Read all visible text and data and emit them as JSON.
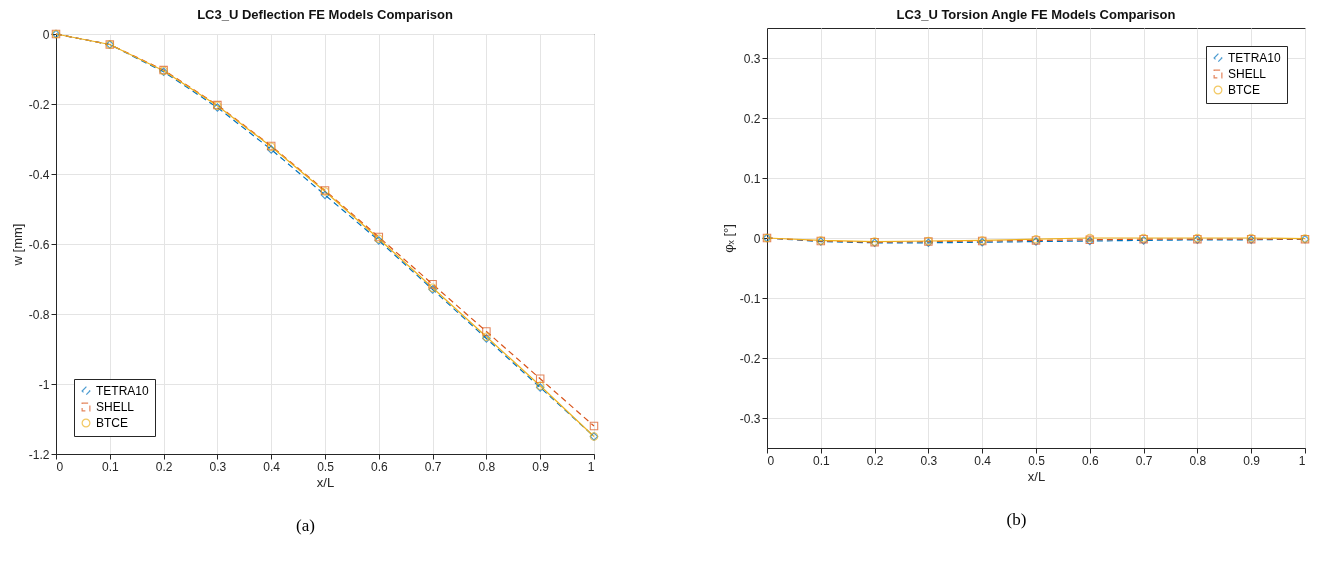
{
  "chart_data": [
    {
      "type": "line",
      "title": "LC3_U Deflection FE Models Comparison",
      "xlabel": "x/L",
      "ylabel": "w [mm]",
      "x": [
        0,
        0.1,
        0.2,
        0.3,
        0.4,
        0.5,
        0.6,
        0.7,
        0.8,
        0.9,
        1
      ],
      "xlim": [
        0,
        1
      ],
      "xticks": [
        0,
        0.1,
        0.2,
        0.3,
        0.4,
        0.5,
        0.6,
        0.7,
        0.8,
        0.9,
        1
      ],
      "ylim": [
        -1.2,
        0
      ],
      "yticks": [
        -1.2,
        -1,
        -0.8,
        -0.6,
        -0.4,
        -0.2,
        0
      ],
      "grid": true,
      "legend": "bottom left",
      "annotations": [
        "(a)"
      ],
      "series": [
        {
          "name": "TETRA10",
          "color": "#0072bd",
          "marker": "diamond",
          "line_style": "dashed",
          "values": [
            0,
            -0.03,
            -0.108,
            -0.21,
            -0.33,
            -0.46,
            -0.59,
            -0.73,
            -0.87,
            -1.01,
            -1.15
          ]
        },
        {
          "name": "SHELL",
          "color": "#d95319",
          "marker": "square",
          "line_style": "dashed",
          "values": [
            0,
            -0.03,
            -0.103,
            -0.203,
            -0.32,
            -0.447,
            -0.58,
            -0.715,
            -0.85,
            -0.985,
            -1.12
          ]
        },
        {
          "name": "BTCE",
          "color": "#edb120",
          "marker": "circle",
          "line_style": "solid",
          "values": [
            0,
            -0.03,
            -0.105,
            -0.205,
            -0.322,
            -0.45,
            -0.585,
            -0.725,
            -0.865,
            -1.005,
            -1.15
          ]
        }
      ]
    },
    {
      "type": "line",
      "title": "LC3_U Torsion Angle FE Models Comparison",
      "xlabel": "x/L",
      "ylabel": "φₓ [°]",
      "x": [
        0,
        0.1,
        0.2,
        0.3,
        0.4,
        0.5,
        0.6,
        0.7,
        0.8,
        0.9,
        1
      ],
      "xlim": [
        0,
        1
      ],
      "xticks": [
        0,
        0.1,
        0.2,
        0.3,
        0.4,
        0.5,
        0.6,
        0.7,
        0.8,
        0.9,
        1
      ],
      "ylim": [
        -0.35,
        0.35
      ],
      "yticks": [
        -0.3,
        -0.2,
        -0.1,
        0,
        0.1,
        0.2,
        0.3
      ],
      "grid": true,
      "legend": "top right",
      "annotations": [
        "(b)"
      ],
      "series": [
        {
          "name": "TETRA10",
          "color": "#0072bd",
          "marker": "diamond",
          "line_style": "dashed",
          "values": [
            0,
            -0.006,
            -0.008,
            -0.008,
            -0.007,
            -0.006,
            -0.005,
            -0.004,
            -0.003,
            -0.003,
            -0.002
          ]
        },
        {
          "name": "SHELL",
          "color": "#d95319",
          "marker": "square",
          "line_style": "dashed",
          "values": [
            0,
            -0.005,
            -0.007,
            -0.006,
            -0.005,
            -0.004,
            -0.003,
            -0.002,
            -0.002,
            -0.002,
            -0.002
          ]
        },
        {
          "name": "BTCE",
          "color": "#edb120",
          "marker": "circle",
          "line_style": "solid",
          "values": [
            0,
            -0.004,
            -0.006,
            -0.005,
            -0.004,
            -0.002,
            0,
            0,
            0,
            0,
            -0.001
          ]
        }
      ]
    }
  ]
}
